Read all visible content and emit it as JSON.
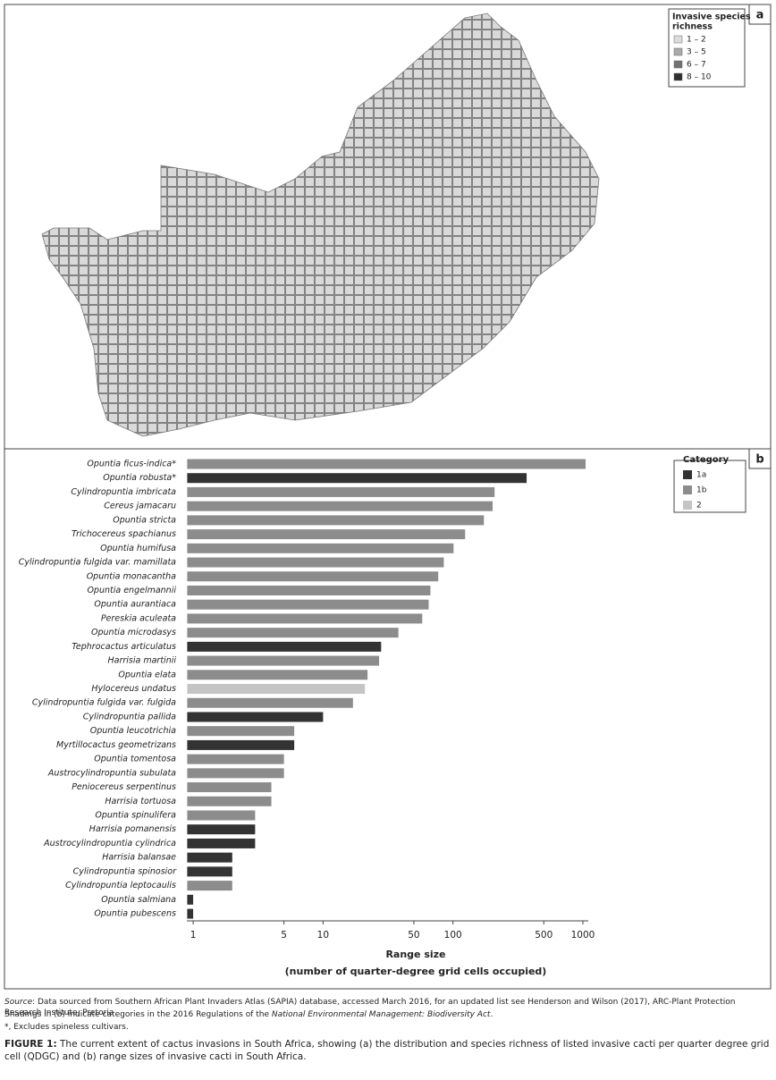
{
  "chart_data": {
    "type": "bar",
    "orientation": "horizontal",
    "log_x": true,
    "panel_a_label": "a",
    "panel_b_label": "b",
    "map_legend": {
      "title_lines": [
        "Invasive species",
        "richness"
      ],
      "items": [
        {
          "name": "1 – 2",
          "color": "#dcdcdc"
        },
        {
          "name": "3 – 5",
          "color": "#a9a9a9"
        },
        {
          "name": "6 – 7",
          "color": "#707070"
        },
        {
          "name": "8 – 10",
          "color": "#2f2f2f"
        }
      ]
    },
    "legend": {
      "title": "Category",
      "items": [
        {
          "name": "1a",
          "color": "#333333"
        },
        {
          "name": "1b",
          "color": "#8c8c8c"
        },
        {
          "name": "2",
          "color": "#c4c4c4"
        }
      ]
    },
    "categories": [
      "Opuntia ficus-indica*",
      "Opuntia robusta*",
      "Cylindropuntia imbricata",
      "Cereus jamacaru",
      "Opuntia stricta",
      "Trichocereus spachianus",
      "Opuntia humifusa",
      "Cylindropuntia fulgida var. mamillata",
      "Opuntia monacantha",
      "Opuntia engelmannii",
      "Opuntia aurantiaca",
      "Pereskia aculeata",
      "Opuntia microdasys",
      "Tephrocactus articulatus",
      "Harrisia martinii",
      "Opuntia elata",
      "Hylocereus undatus",
      "Cylindropuntia fulgida var. fulgida",
      "Cylindropuntia pallida",
      "Opuntia leucotrichia",
      "Myrtillocactus geometrizans",
      "Opuntia tomentosa",
      "Austrocylindropuntia subulata",
      "Peniocereus serpentinus",
      "Harrisia tortuosa",
      "Opuntia spinulifera",
      "Harrisia pomanensis",
      "Austrocylindropuntia cylindrica",
      "Harrisia balansae",
      "Cylindropuntia spinosior",
      "Cylindropuntia leptocaulis",
      "Opuntia salmiana",
      "Opuntia pubescens"
    ],
    "values": [
      1050,
      369,
      209,
      202,
      173,
      124,
      101,
      85,
      77,
      67,
      65,
      58,
      38,
      28,
      27,
      22,
      21,
      17,
      10,
      6,
      6,
      5,
      5,
      4,
      4,
      3,
      3,
      3,
      2,
      2,
      2,
      1,
      1
    ],
    "bar_category": [
      "1b",
      "1a",
      "1b",
      "1b",
      "1b",
      "1b",
      "1b",
      "1b",
      "1b",
      "1b",
      "1b",
      "1b",
      "1b",
      "1a",
      "1b",
      "1b",
      "2",
      "1b",
      "1a",
      "1b",
      "1a",
      "1b",
      "1b",
      "1b",
      "1b",
      "1b",
      "1a",
      "1a",
      "1a",
      "1a",
      "1b",
      "1a",
      "1a"
    ],
    "xlim": [
      0.9,
      1100
    ],
    "xticks": [
      1,
      5,
      10,
      50,
      100,
      500,
      1000
    ],
    "xlabel_lines": [
      "Range size",
      "(number of quarter-degree grid cells occupied)"
    ]
  },
  "notes": {
    "source_label": "Source",
    "source_text": ": Data sourced from Southern African Plant Invaders Atlas (SAPIA) database, accessed March 2016, for an updated list see Henderson and Wilson (2017), ARC-Plant Protection Research Institute, Pretoria",
    "shadings_pre": "Shadings in (b) indicate categories in the 2016 Regulations of the ",
    "shadings_act": "National Environmental Management: Biodiversity Act",
    "shadings_post": ".",
    "asterisk": "*, Excludes spineless cultivars.",
    "caption_label": "FIGURE 1:",
    "caption_text": " The current extent of cactus invasions in South Africa, showing (a) the distribution and species richness of listed invasive cacti per quarter degree grid cell (QDGC) and (b) range sizes of invasive cacti in South Africa."
  }
}
